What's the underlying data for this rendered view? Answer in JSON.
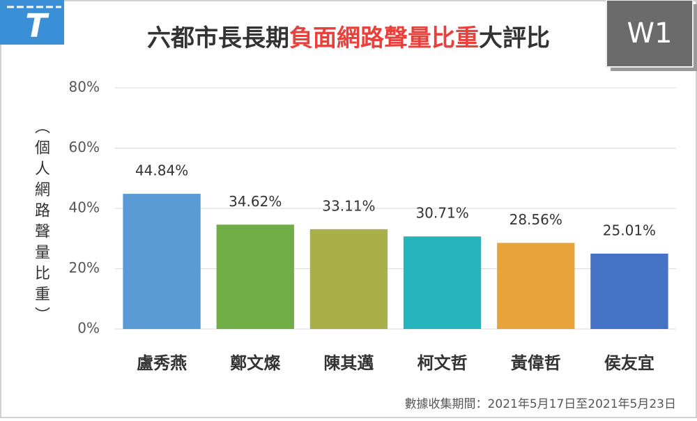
{
  "chart_data": {
    "type": "bar",
    "logo": "T",
    "badge": "W1",
    "title": [
      {
        "text": "六都市長長期",
        "color": "#333333"
      },
      {
        "text": "負面網路聲量比重",
        "color": "#e8413c"
      },
      {
        "text": "大評比",
        "color": "#333333"
      }
    ],
    "y_label": "（個人網路聲量比重）",
    "categories": [
      "盧秀燕",
      "鄭文燦",
      "陳其邁",
      "柯文哲",
      "黃偉哲",
      "侯友宜"
    ],
    "values": [
      44.84,
      34.62,
      33.11,
      30.71,
      28.56,
      25.01
    ],
    "value_labels": [
      "44.84%",
      "34.62%",
      "33.11%",
      "30.71%",
      "28.56%",
      "25.01%"
    ],
    "colors": [
      "#5b9bd5",
      "#70ad47",
      "#a9b04a",
      "#26b4bc",
      "#e8a33a",
      "#4472c4"
    ],
    "ylim": [
      0,
      80
    ],
    "yticks": [
      {
        "value": 0,
        "label": "0%"
      },
      {
        "value": 20,
        "label": "20%"
      },
      {
        "value": 40,
        "label": "40%"
      },
      {
        "value": 60,
        "label": "60%"
      },
      {
        "value": 80,
        "label": "80%"
      }
    ],
    "grid": true,
    "footnote": "數據收集期間：2021年5月17日至2021年5月23日"
  }
}
